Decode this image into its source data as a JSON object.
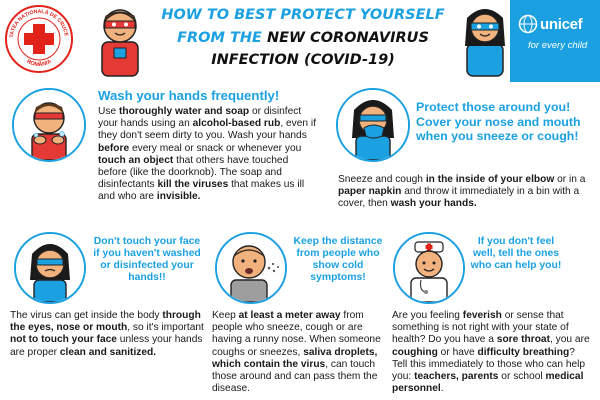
{
  "header": {
    "title_line1": "HOW TO BEST PROTECT YOURSELF",
    "title_line2a": "FROM THE ",
    "title_line2b": "NEW CORONAVIRUS",
    "title_line3": "INFECTION (COVID-19)",
    "seal_text_top": "SOCIETATEA NAȚIONALĂ DE CRUCE ROȘIE",
    "seal_text_bottom": "ROMÂNIA",
    "unicef_name": "unicef",
    "unicef_tagline": "for every child"
  },
  "panels": {
    "wash": {
      "heading": "Wash your hands frequently!",
      "segments": [
        {
          "t": "Use ",
          "b": false
        },
        {
          "t": "thoroughly water and soap",
          "b": true
        },
        {
          "t": " or disinfect your hands using an ",
          "b": false
        },
        {
          "t": "alcohol-based rub",
          "b": true
        },
        {
          "t": ", even if they don't seem dirty to you. Wash your hands ",
          "b": false
        },
        {
          "t": "before",
          "b": true
        },
        {
          "t": " every meal or snack or whenever you ",
          "b": false
        },
        {
          "t": "touch an object",
          "b": true
        },
        {
          "t": " that others have touched before (like the doorknob). The soap and disinfectants ",
          "b": false
        },
        {
          "t": "kill the viruses",
          "b": true
        },
        {
          "t": " that makes us ill and who are ",
          "b": false
        },
        {
          "t": "invisible.",
          "b": true
        }
      ]
    },
    "protect": {
      "heading": "Protect those around you! Cover your nose and mouth when you sneeze or cough!",
      "segments": [
        {
          "t": "Sneeze and cough ",
          "b": false
        },
        {
          "t": "in the inside of your elbow",
          "b": true
        },
        {
          "t": " or in a ",
          "b": false
        },
        {
          "t": "paper napkin",
          "b": true
        },
        {
          "t": " and throw it immediately in a bin with a cover, then ",
          "b": false
        },
        {
          "t": "wash your hands.",
          "b": true
        }
      ]
    },
    "face": {
      "heading": "Don't touch your face if you haven't washed or disinfected your hands!!",
      "segments": [
        {
          "t": "The virus can get inside the body ",
          "b": false
        },
        {
          "t": "through the eyes, nose or mouth",
          "b": true
        },
        {
          "t": ", so it's important ",
          "b": false
        },
        {
          "t": "not to touch your face",
          "b": true
        },
        {
          "t": " unless your hands are proper ",
          "b": false
        },
        {
          "t": "clean and sanitized.",
          "b": true
        }
      ]
    },
    "distance": {
      "heading": "Keep the distance from people who show cold symptoms!",
      "segments": [
        {
          "t": "Keep ",
          "b": false
        },
        {
          "t": "at least a meter away",
          "b": true
        },
        {
          "t": " from people who sneeze, cough or are having a runny nose. When someone coughs or sneezes, ",
          "b": false
        },
        {
          "t": "saliva droplets, which contain the virus",
          "b": true
        },
        {
          "t": ", can touch those around and can pass them the disease.",
          "b": false
        }
      ]
    },
    "unwell": {
      "heading": "If you don't feel well, tell the ones who can help you!",
      "segments": [
        {
          "t": "Are you feeling ",
          "b": false
        },
        {
          "t": "feverish",
          "b": true
        },
        {
          "t": " or sense that something is not right with your state of health? Do you have a ",
          "b": false
        },
        {
          "t": "sore throat",
          "b": true
        },
        {
          "t": ", you are ",
          "b": false
        },
        {
          "t": "coughing",
          "b": true
        },
        {
          "t": " or have ",
          "b": false
        },
        {
          "t": "difficulty breathing",
          "b": true
        },
        {
          "t": "? Tell this immediately to those who can help you: ",
          "b": false
        },
        {
          "t": "teachers, parents",
          "b": true
        },
        {
          "t": " or school ",
          "b": false
        },
        {
          "t": "medical personnel",
          "b": true
        },
        {
          "t": ".",
          "b": false
        }
      ]
    }
  },
  "colors": {
    "accent_blue": "#1ba1e2",
    "red_cross": "#e2231a",
    "hero_red": "#e53935",
    "skin": "#f2b27d"
  },
  "icons": {
    "seal": "red-cross-seal-icon",
    "unicef": "unicef-globe-icon"
  }
}
